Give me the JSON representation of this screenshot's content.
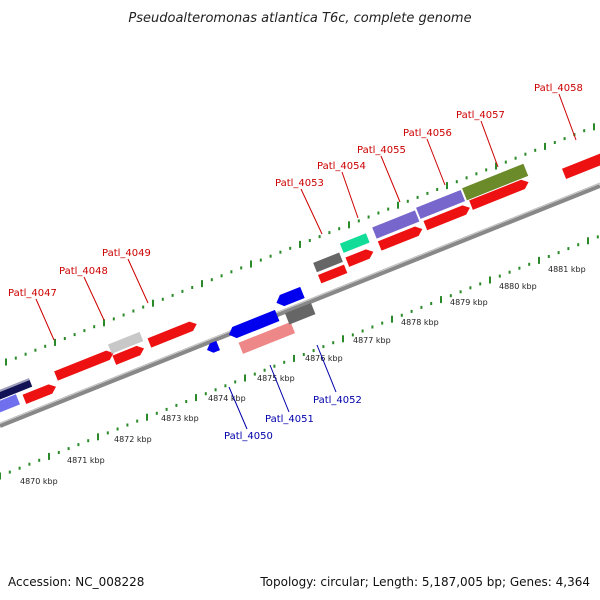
{
  "title": "Pseudoalteromonas atlantica T6c, complete genome",
  "footer": {
    "accession": "Accession: NC_008228",
    "summary": "Topology: circular; Length: 5,187,005 bp; Genes: 4,364"
  },
  "colors": {
    "forward_label": "#cc0000",
    "reverse_label": "#0000aa",
    "backbone": "#888888",
    "tick": "#2a8a2a"
  },
  "kbp_labels": [
    "4870 kbp",
    "4871 kbp",
    "4872 kbp",
    "4873 kbp",
    "4874 kbp",
    "4875 kbp",
    "4876 kbp",
    "4877 kbp",
    "4878 kbp",
    "4879 kbp",
    "4880 kbp",
    "4881 kbp"
  ],
  "forward_labels": [
    "Patl_4047",
    "Patl_4048",
    "Patl_4049",
    "Patl_4053",
    "Patl_4054",
    "Patl_4055",
    "Patl_4056",
    "Patl_4057",
    "Patl_4058"
  ],
  "reverse_labels": [
    "Patl_4050",
    "Patl_4051",
    "Patl_4052"
  ]
}
